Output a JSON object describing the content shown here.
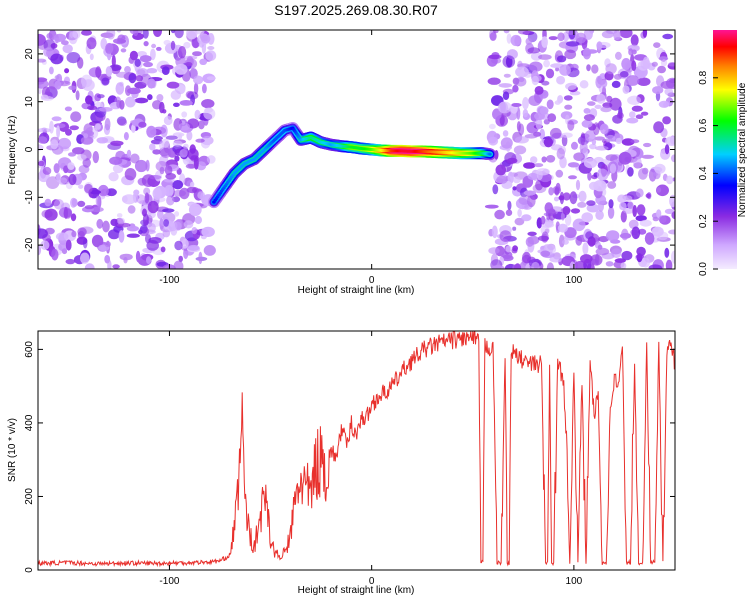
{
  "title": "S197.2025.269.08.30.R07",
  "chart_data": [
    {
      "type": "heatmap",
      "xlabel": "Height of straight line (km)",
      "ylabel": "Frequency (Hz)",
      "xlim": [
        -165,
        150
      ],
      "ylim": [
        -25,
        25
      ],
      "xticks": [
        -100,
        0,
        100
      ],
      "yticks": [
        -20,
        -10,
        0,
        10,
        20
      ],
      "colorbar": {
        "label": "Normalized spectral amplitude",
        "range": [
          0,
          1
        ],
        "ticks": [
          0.0,
          0.2,
          0.4,
          0.6,
          0.8
        ],
        "colors": [
          "#f4ecff",
          "#8a2be2",
          "#0000ff",
          "#00cfff",
          "#00ff00",
          "#ffff00",
          "#ff7f00",
          "#ff0000",
          "#ff1493"
        ]
      },
      "noise_regions": [
        {
          "x_start": -165,
          "x_end": -79,
          "amplitude": 0.15
        },
        {
          "x_start": 59,
          "x_end": 150,
          "amplitude": 0.15
        }
      ],
      "ridge": {
        "x": [
          -78,
          -73,
          -68,
          -63,
          -58,
          -53,
          -48,
          -43,
          -39,
          -35,
          -30,
          -25,
          -20,
          -15,
          -10,
          -5,
          0,
          5,
          10,
          15,
          20,
          25,
          30,
          35,
          40,
          45,
          50,
          55,
          59
        ],
        "frequency": [
          -11,
          -8,
          -5,
          -3,
          -2,
          0,
          2,
          4,
          4.5,
          2,
          2.5,
          1.5,
          1,
          0.7,
          0.5,
          0.2,
          0,
          -0.2,
          -0.3,
          -0.3,
          -0.4,
          -0.4,
          -0.5,
          -0.6,
          -0.7,
          -0.8,
          -0.8,
          -0.8,
          -1
        ],
        "amplitude": [
          0.35,
          0.4,
          0.45,
          0.45,
          0.45,
          0.45,
          0.4,
          0.4,
          0.35,
          0.45,
          0.55,
          0.5,
          0.45,
          0.5,
          0.6,
          0.6,
          0.65,
          0.75,
          0.9,
          0.95,
          0.95,
          0.9,
          0.85,
          0.8,
          0.75,
          0.7,
          0.65,
          0.55,
          0.4
        ]
      }
    },
    {
      "type": "line",
      "xlabel": "Height of straight line (km)",
      "ylabel": "SNR (10 * v/v)",
      "xlim": [
        -165,
        150
      ],
      "ylim": [
        0,
        650
      ],
      "xticks": [
        -100,
        0,
        100
      ],
      "yticks": [
        0,
        200,
        400,
        600
      ],
      "series": [
        {
          "color": "#e8302c",
          "x": [
            -165,
            -150,
            -135,
            -120,
            -105,
            -90,
            -80,
            -75,
            -70,
            -68,
            -66,
            -65,
            -64,
            -63,
            -62,
            -60,
            -58,
            -55,
            -52,
            -50,
            -48,
            -45,
            -42,
            -40,
            -38,
            -35,
            -32,
            -30,
            -28,
            -25,
            -22,
            -20,
            -18,
            -15,
            -12,
            -10,
            -8,
            -5,
            -2,
            0,
            3,
            6,
            10,
            14,
            18,
            22,
            26,
            30,
            35,
            40,
            45,
            50,
            52,
            53,
            54,
            55,
            56,
            58,
            60,
            62,
            64,
            66,
            67,
            68,
            69,
            70,
            72,
            75,
            78,
            80,
            84,
            86,
            87,
            88,
            89,
            90,
            92,
            95,
            98,
            100,
            102,
            104,
            106,
            108,
            110,
            112,
            114,
            116,
            118,
            120,
            122,
            124,
            126,
            128,
            130,
            132,
            134,
            136,
            138,
            140,
            142,
            144,
            146,
            148,
            150
          ],
          "y": [
            18,
            20,
            17,
            19,
            18,
            20,
            22,
            25,
            40,
            120,
            200,
            300,
            460,
            250,
            150,
            90,
            60,
            150,
            220,
            80,
            50,
            30,
            60,
            100,
            180,
            250,
            220,
            200,
            280,
            300,
            260,
            330,
            300,
            380,
            340,
            400,
            370,
            410,
            420,
            450,
            470,
            480,
            500,
            530,
            560,
            580,
            600,
            610,
            620,
            625,
            630,
            630,
            620,
            620,
            20,
            20,
            610,
            600,
            620,
            20,
            20,
            590,
            20,
            20,
            600,
            590,
            580,
            570,
            560,
            560,
            560,
            20,
            20,
            540,
            20,
            20,
            560,
            520,
            20,
            560,
            20,
            520,
            20,
            560,
            420,
            480,
            20,
            20,
            440,
            520,
            500,
            600,
            20,
            20,
            550,
            20,
            20,
            600,
            20,
            20,
            600,
            20,
            580,
            620,
            560
          ]
        }
      ]
    }
  ]
}
